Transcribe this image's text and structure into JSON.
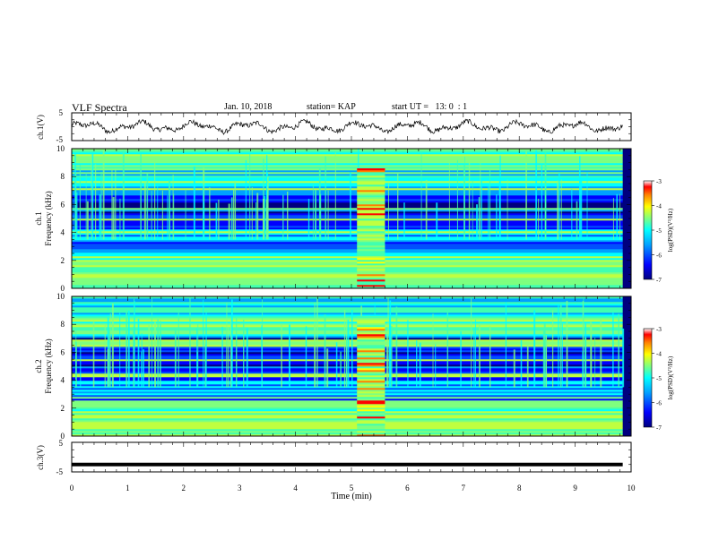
{
  "header": {
    "title": "VLF Spectra",
    "date": "Jan. 10, 2018",
    "station": "station= KAP",
    "start": "start UT =   13: 0  : 1"
  },
  "chart_data": [
    {
      "type": "line",
      "panel": "ch1-waveform",
      "ylabel": "ch.1(V)",
      "ylim": [
        -5,
        5
      ],
      "yticks": [
        "5",
        "-5"
      ],
      "x_range_min": [
        0,
        9.85
      ],
      "description_values": "dense oscillating waveform roughly between -2.8 and 2.6 V"
    },
    {
      "type": "heatmap",
      "panel": "ch1-spectrogram",
      "ylabel": "ch.1\nFrequency (kHz)",
      "ylim": [
        0,
        10
      ],
      "yticks": [
        "0",
        "2",
        "4",
        "6",
        "8",
        "10"
      ],
      "x_range_min": [
        0,
        9.85
      ],
      "burst_min": [
        5.1,
        5.6
      ],
      "colorbar": {
        "label": "log(PSD)(V²/Hz)",
        "range": [
          -7,
          -3
        ],
        "ticks": [
          "-3",
          "-4",
          "-5",
          "-6",
          "-7"
        ]
      }
    },
    {
      "type": "heatmap",
      "panel": "ch2-spectrogram",
      "ylabel": "ch.2\nFrequency (kHz)",
      "ylim": [
        0,
        10
      ],
      "yticks": [
        "0",
        "2",
        "4",
        "6",
        "8",
        "10"
      ],
      "x_range_min": [
        0,
        9.85
      ],
      "burst_min": [
        5.1,
        5.6
      ],
      "colorbar": {
        "label": "log(PSD)(V²/Hz)",
        "range": [
          -7,
          -3
        ],
        "ticks": [
          "-3",
          "-4",
          "-5",
          "-6",
          "-7"
        ]
      }
    },
    {
      "type": "line",
      "panel": "ch3-waveform",
      "ylabel": "ch.3(V)",
      "ylim": [
        -5,
        5
      ],
      "yticks": [
        "5",
        "-5"
      ],
      "x_range_min": [
        0,
        9.85
      ],
      "constant_value": -2.5
    }
  ],
  "xaxis": {
    "label": "Time (min)",
    "range": [
      0,
      10
    ],
    "ticks": [
      "0",
      "1",
      "2",
      "3",
      "4",
      "5",
      "6",
      "7",
      "8",
      "9",
      "10"
    ]
  },
  "colors": {
    "colormap": [
      "#00007f",
      "#0000ff",
      "#00a0ff",
      "#00ffff",
      "#7fff7f",
      "#ffff00",
      "#ff8000",
      "#ff0000",
      "#ffffff"
    ],
    "axis": "#000000"
  }
}
